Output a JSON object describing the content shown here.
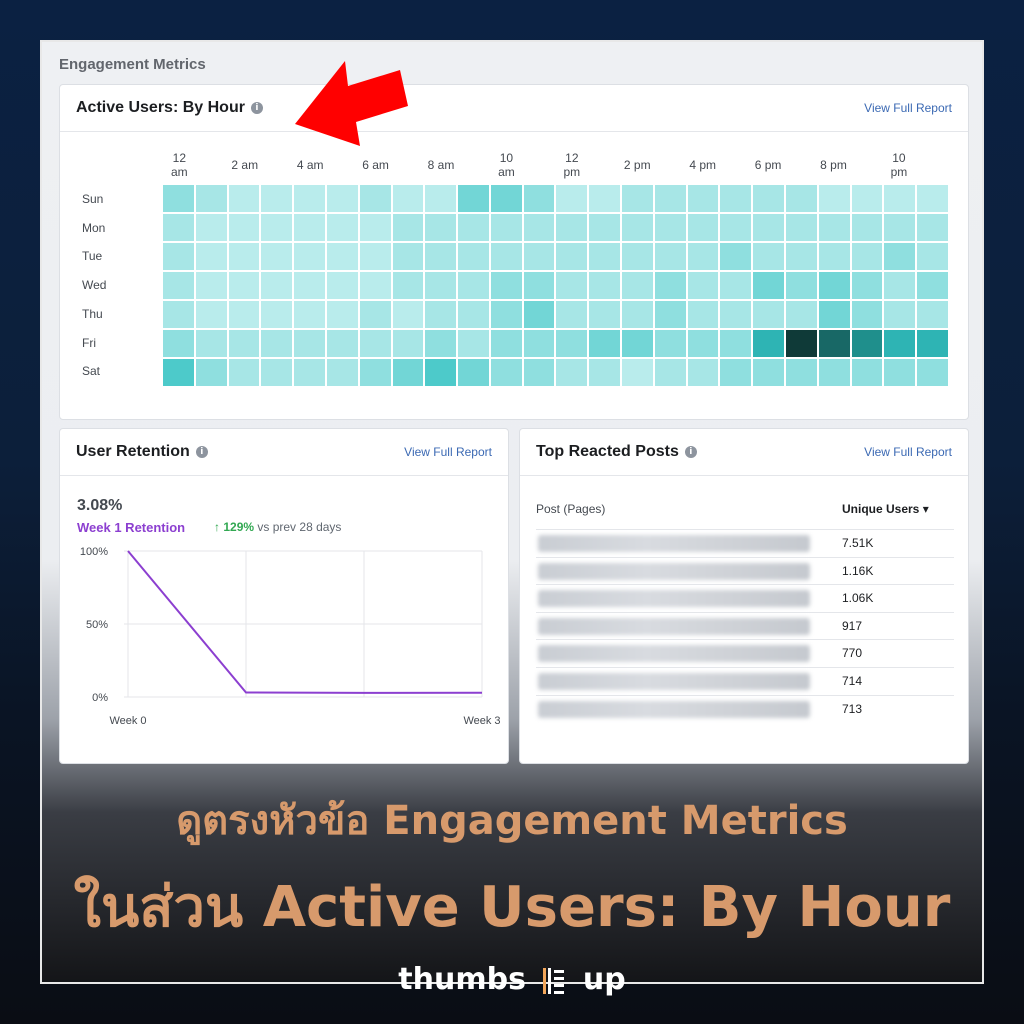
{
  "section_title": "Engagement Metrics",
  "active_users": {
    "title": "Active Users: By Hour",
    "view_link": "View Full Report",
    "col_labels": [
      "12\nam",
      "2 am",
      "4 am",
      "6 am",
      "8 am",
      "10\nam",
      "12\npm",
      "2 pm",
      "4 pm",
      "6 pm",
      "8 pm",
      "10\npm"
    ],
    "days": [
      "Sun",
      "Mon",
      "Tue",
      "Wed",
      "Thu",
      "Fri",
      "Sat"
    ],
    "scale_colors": [
      "#c8f1f1",
      "#b9ecec",
      "#a7e6e6",
      "#8fdfdf",
      "#72d6d6",
      "#4dcaca",
      "#2eb4b4",
      "#1f8f8c",
      "#186866",
      "#0f3a38"
    ],
    "heat_levels": [
      [
        3,
        2,
        1,
        1,
        1,
        1,
        2,
        1,
        1,
        4,
        4,
        3,
        1,
        1,
        2,
        2,
        2,
        2,
        2,
        2,
        1,
        1,
        1,
        1
      ],
      [
        2,
        1,
        1,
        1,
        1,
        1,
        1,
        2,
        2,
        2,
        2,
        2,
        2,
        2,
        2,
        2,
        2,
        2,
        2,
        2,
        2,
        2,
        2,
        2
      ],
      [
        2,
        1,
        1,
        1,
        1,
        1,
        1,
        2,
        2,
        2,
        2,
        2,
        2,
        2,
        2,
        2,
        2,
        3,
        2,
        2,
        2,
        2,
        3,
        2
      ],
      [
        2,
        1,
        1,
        1,
        1,
        1,
        1,
        2,
        2,
        2,
        3,
        3,
        2,
        2,
        2,
        3,
        2,
        2,
        4,
        3,
        4,
        3,
        2,
        3
      ],
      [
        2,
        1,
        1,
        1,
        1,
        1,
        2,
        1,
        2,
        2,
        3,
        4,
        2,
        2,
        2,
        3,
        2,
        2,
        2,
        2,
        4,
        3,
        2,
        2
      ],
      [
        3,
        2,
        2,
        2,
        2,
        2,
        2,
        2,
        3,
        2,
        3,
        3,
        3,
        4,
        4,
        3,
        3,
        3,
        6,
        9,
        8,
        7,
        6,
        6
      ],
      [
        5,
        3,
        2,
        2,
        2,
        2,
        3,
        4,
        5,
        4,
        3,
        3,
        2,
        2,
        1,
        2,
        2,
        3,
        3,
        3,
        3,
        3,
        3,
        3
      ]
    ]
  },
  "retention": {
    "title": "User Retention",
    "view_link": "View Full Report",
    "value": "3.08%",
    "label": "Week 1 Retention",
    "change_arrow": "↑",
    "change_pct": "129%",
    "change_text": " vs prev 28 days",
    "y_ticks": [
      "100%",
      "50%",
      "0%"
    ],
    "x_ticks": [
      "Week 0",
      "Week 3"
    ],
    "line_color": "#8c3fd0"
  },
  "chart_data": {
    "type": "line",
    "title": "User Retention",
    "x": [
      0,
      1,
      2,
      3
    ],
    "x_tick_labels": [
      "Week 0",
      "Week 3"
    ],
    "series": [
      {
        "values": [
          100,
          3.08,
          2.8,
          2.9
        ]
      }
    ],
    "ylim": [
      0,
      100
    ],
    "y_tick_labels": [
      "100%",
      "50%",
      "0%"
    ],
    "grid": true
  },
  "top_posts": {
    "title": "Top Reacted Posts",
    "view_link": "View Full Report",
    "col_post": "Post (Pages)",
    "col_users": "Unique Users",
    "sort_icon": "▾",
    "values": [
      "7.51K",
      "1.16K",
      "1.06K",
      "917",
      "770",
      "714",
      "713"
    ]
  },
  "caption_line1": "ดูตรงหัวข้อ Engagement Metrics",
  "caption_line2": "ในส่วน Active Users: By Hour",
  "brand_left": "thumbs",
  "brand_right": "up",
  "arrow_color": "#ff0000"
}
